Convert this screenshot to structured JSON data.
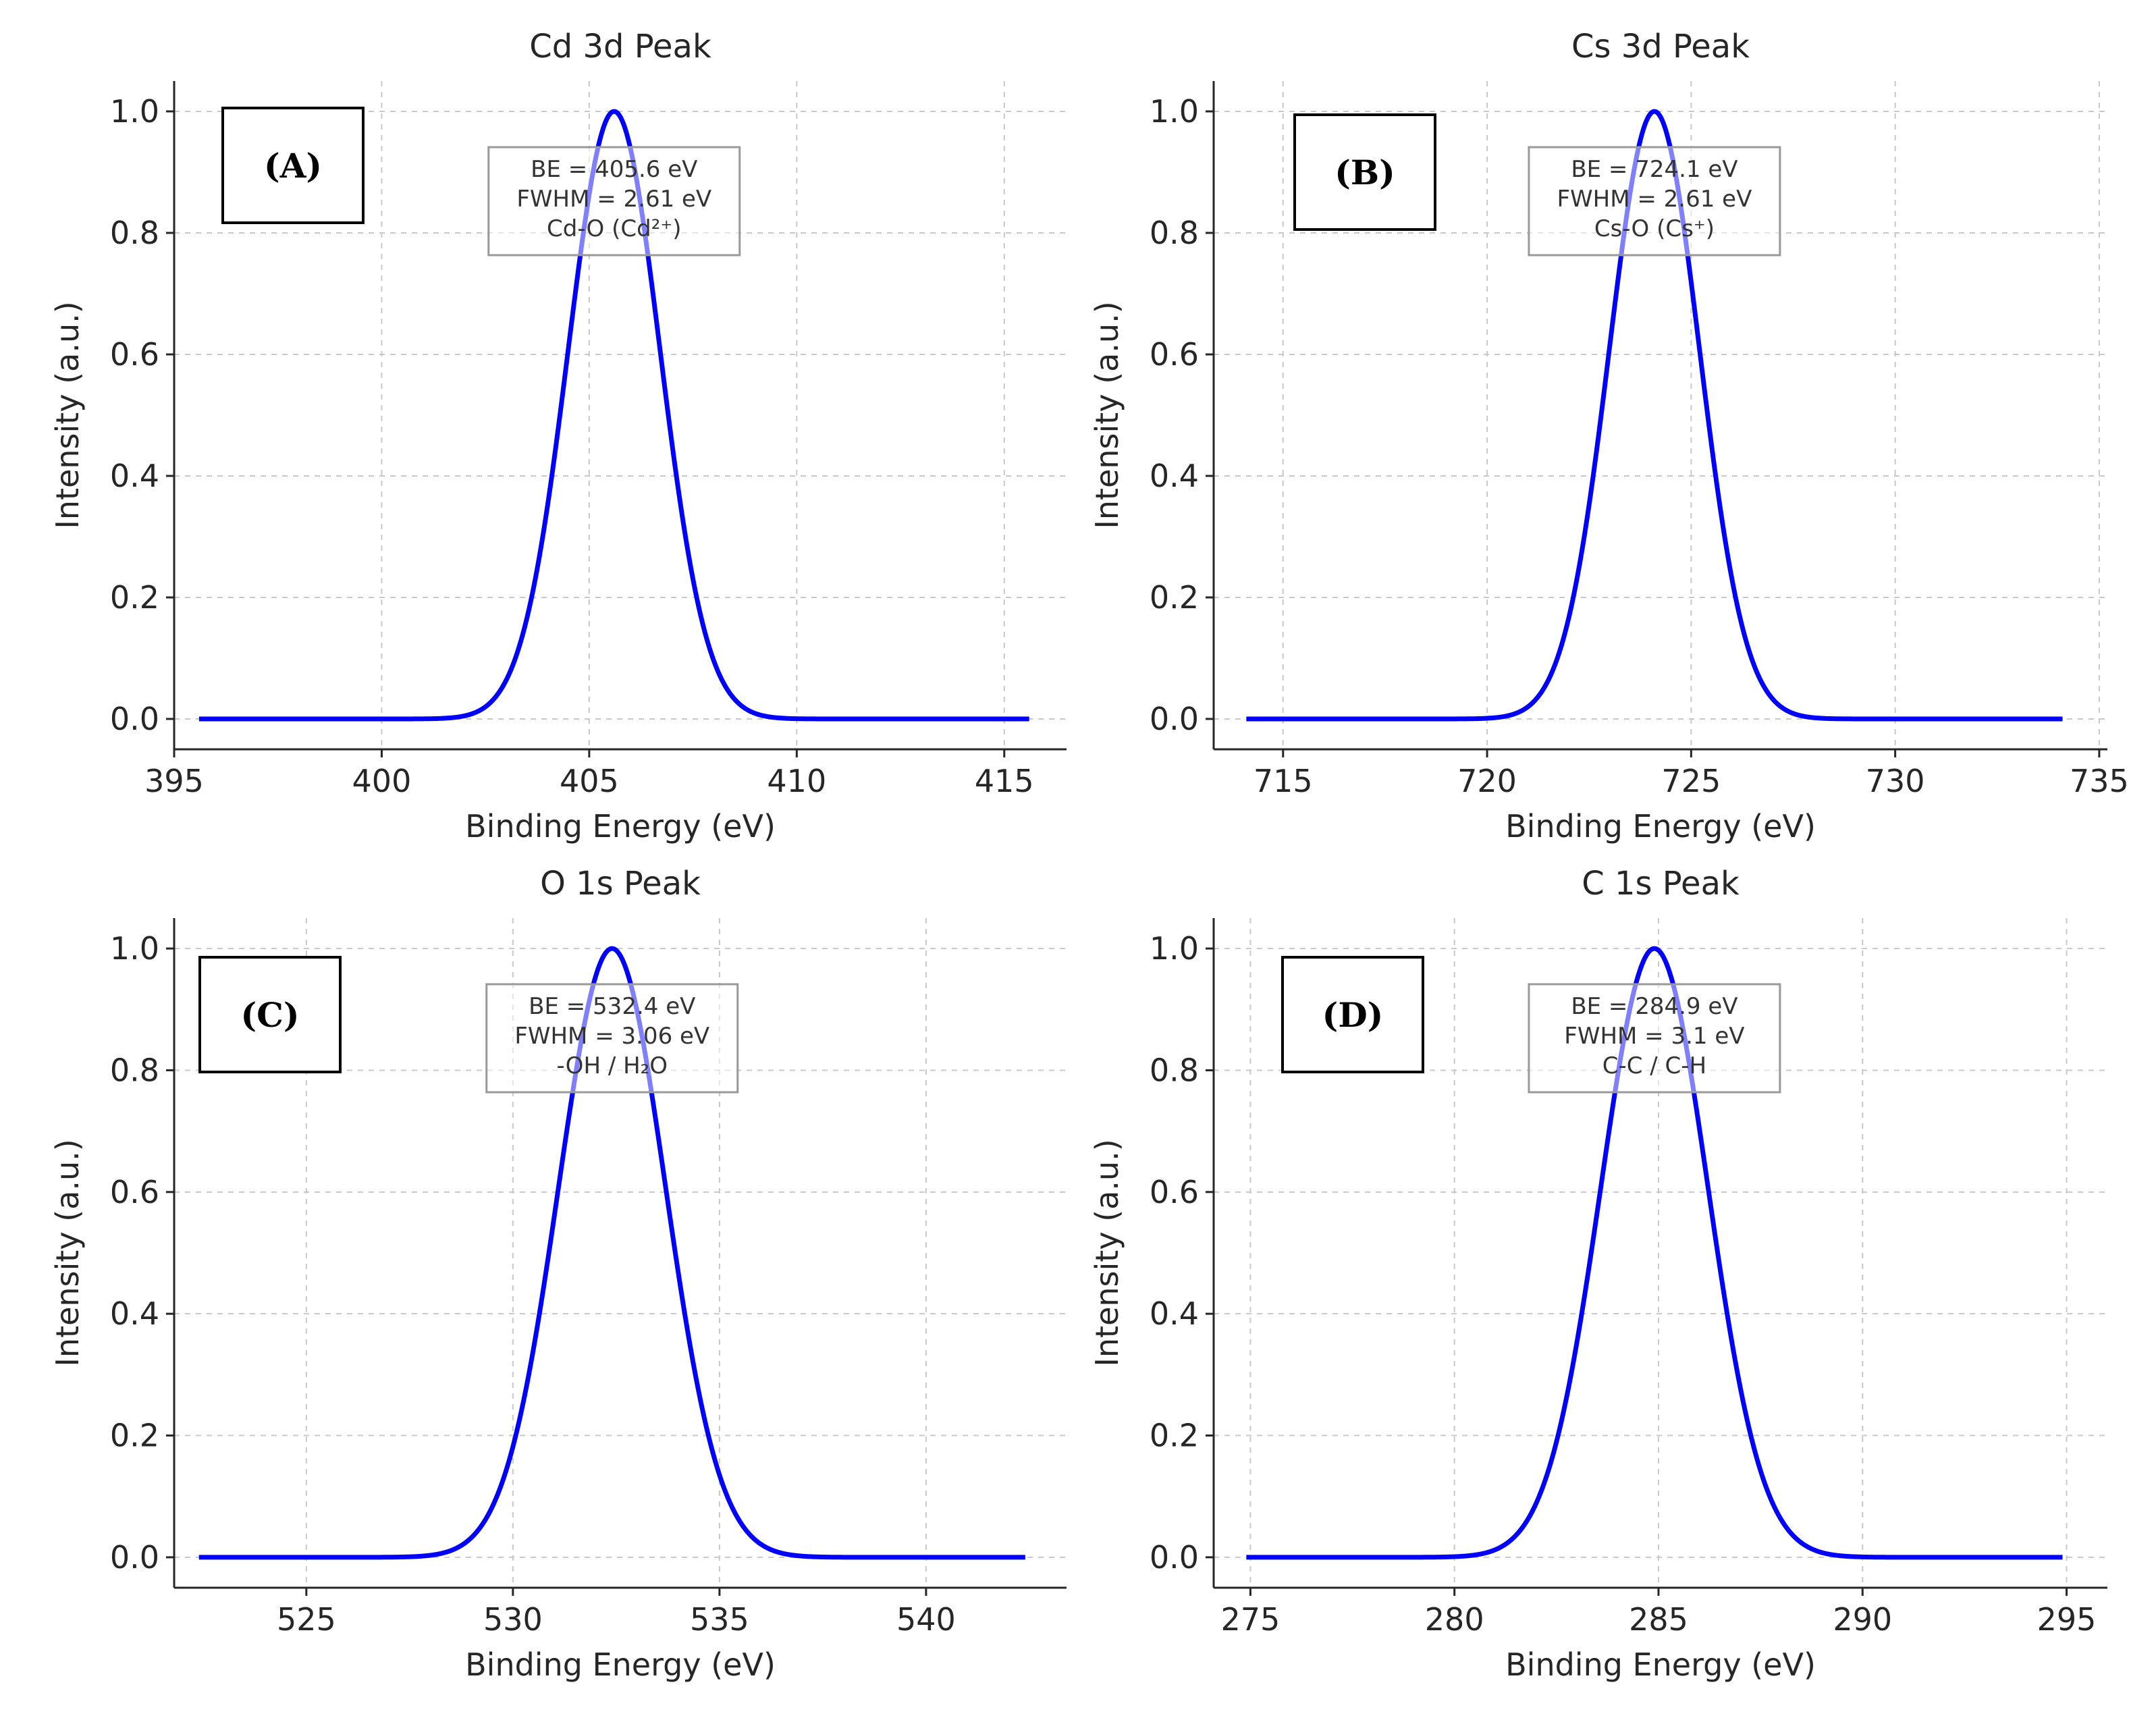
{
  "colors": {
    "curve": "#0000ff",
    "axis": "#262626",
    "grid": "#c8c8c8",
    "annotation_border": "#999999"
  },
  "chart_data": [
    {
      "panel": "(A)",
      "type": "line",
      "title": "Cd 3d Peak",
      "xlabel": "Binding Energy (eV)",
      "ylabel": "Intensity (a.u.)",
      "xlim": [
        395.0,
        416.5
      ],
      "ylim": [
        -0.05,
        1.05
      ],
      "xticks": [
        "395",
        "400",
        "405",
        "410",
        "415"
      ],
      "yticks": [
        "0.0",
        "0.2",
        "0.4",
        "0.6",
        "0.8",
        "1.0"
      ],
      "grid": true,
      "x_range": [
        395.6,
        415.6
      ],
      "series": [
        {
          "name": "Cd 3d",
          "shape": "gaussian",
          "center": 405.6,
          "fwhm": 2.61,
          "amplitude": 1.0
        }
      ],
      "annotation": [
        "BE = 405.6 eV",
        "FWHM = 2.61 eV",
        "Cd-O (Cd²⁺)"
      ]
    },
    {
      "panel": "(B)",
      "type": "line",
      "title": "Cs 3d Peak",
      "xlabel": "Binding Energy (eV)",
      "ylabel": "Intensity (a.u.)",
      "xlim": [
        713.3,
        735.2
      ],
      "ylim": [
        -0.05,
        1.05
      ],
      "xticks": [
        "715",
        "720",
        "725",
        "730",
        "735"
      ],
      "yticks": [
        "0.0",
        "0.2",
        "0.4",
        "0.6",
        "0.8",
        "1.0"
      ],
      "grid": true,
      "x_range": [
        714.1,
        734.1
      ],
      "series": [
        {
          "name": "Cs 3d",
          "shape": "gaussian",
          "center": 724.1,
          "fwhm": 2.61,
          "amplitude": 1.0
        }
      ],
      "annotation": [
        "BE = 724.1 eV",
        "FWHM = 2.61 eV",
        "Cs-O (Cs⁺)"
      ]
    },
    {
      "panel": "(C)",
      "type": "line",
      "title": "O 1s Peak",
      "xlabel": "Binding Energy (eV)",
      "ylabel": "Intensity (a.u.)",
      "xlim": [
        521.8,
        543.4
      ],
      "ylim": [
        -0.05,
        1.05
      ],
      "xticks": [
        "525",
        "530",
        "535",
        "540"
      ],
      "yticks": [
        "0.0",
        "0.2",
        "0.4",
        "0.6",
        "0.8",
        "1.0"
      ],
      "grid": true,
      "x_range": [
        522.4,
        542.4
      ],
      "series": [
        {
          "name": "O 1s",
          "shape": "gaussian",
          "center": 532.4,
          "fwhm": 3.06,
          "amplitude": 1.0
        }
      ],
      "annotation": [
        "BE = 532.4 eV",
        "FWHM = 3.06 eV",
        "-OH / H₂O"
      ]
    },
    {
      "panel": "(D)",
      "type": "line",
      "title": "C 1s Peak",
      "xlabel": "Binding Energy (eV)",
      "ylabel": "Intensity (a.u.)",
      "xlim": [
        274.1,
        296.0
      ],
      "ylim": [
        -0.05,
        1.05
      ],
      "xticks": [
        "275",
        "280",
        "285",
        "290",
        "295"
      ],
      "yticks": [
        "0.0",
        "0.2",
        "0.4",
        "0.6",
        "0.8",
        "1.0"
      ],
      "grid": true,
      "x_range": [
        274.9,
        294.9
      ],
      "series": [
        {
          "name": "C 1s",
          "shape": "gaussian",
          "center": 284.9,
          "fwhm": 3.1,
          "amplitude": 1.0
        }
      ],
      "annotation": [
        "BE = 284.9 eV",
        "FWHM = 3.1 eV",
        "C-C / C-H"
      ]
    }
  ]
}
